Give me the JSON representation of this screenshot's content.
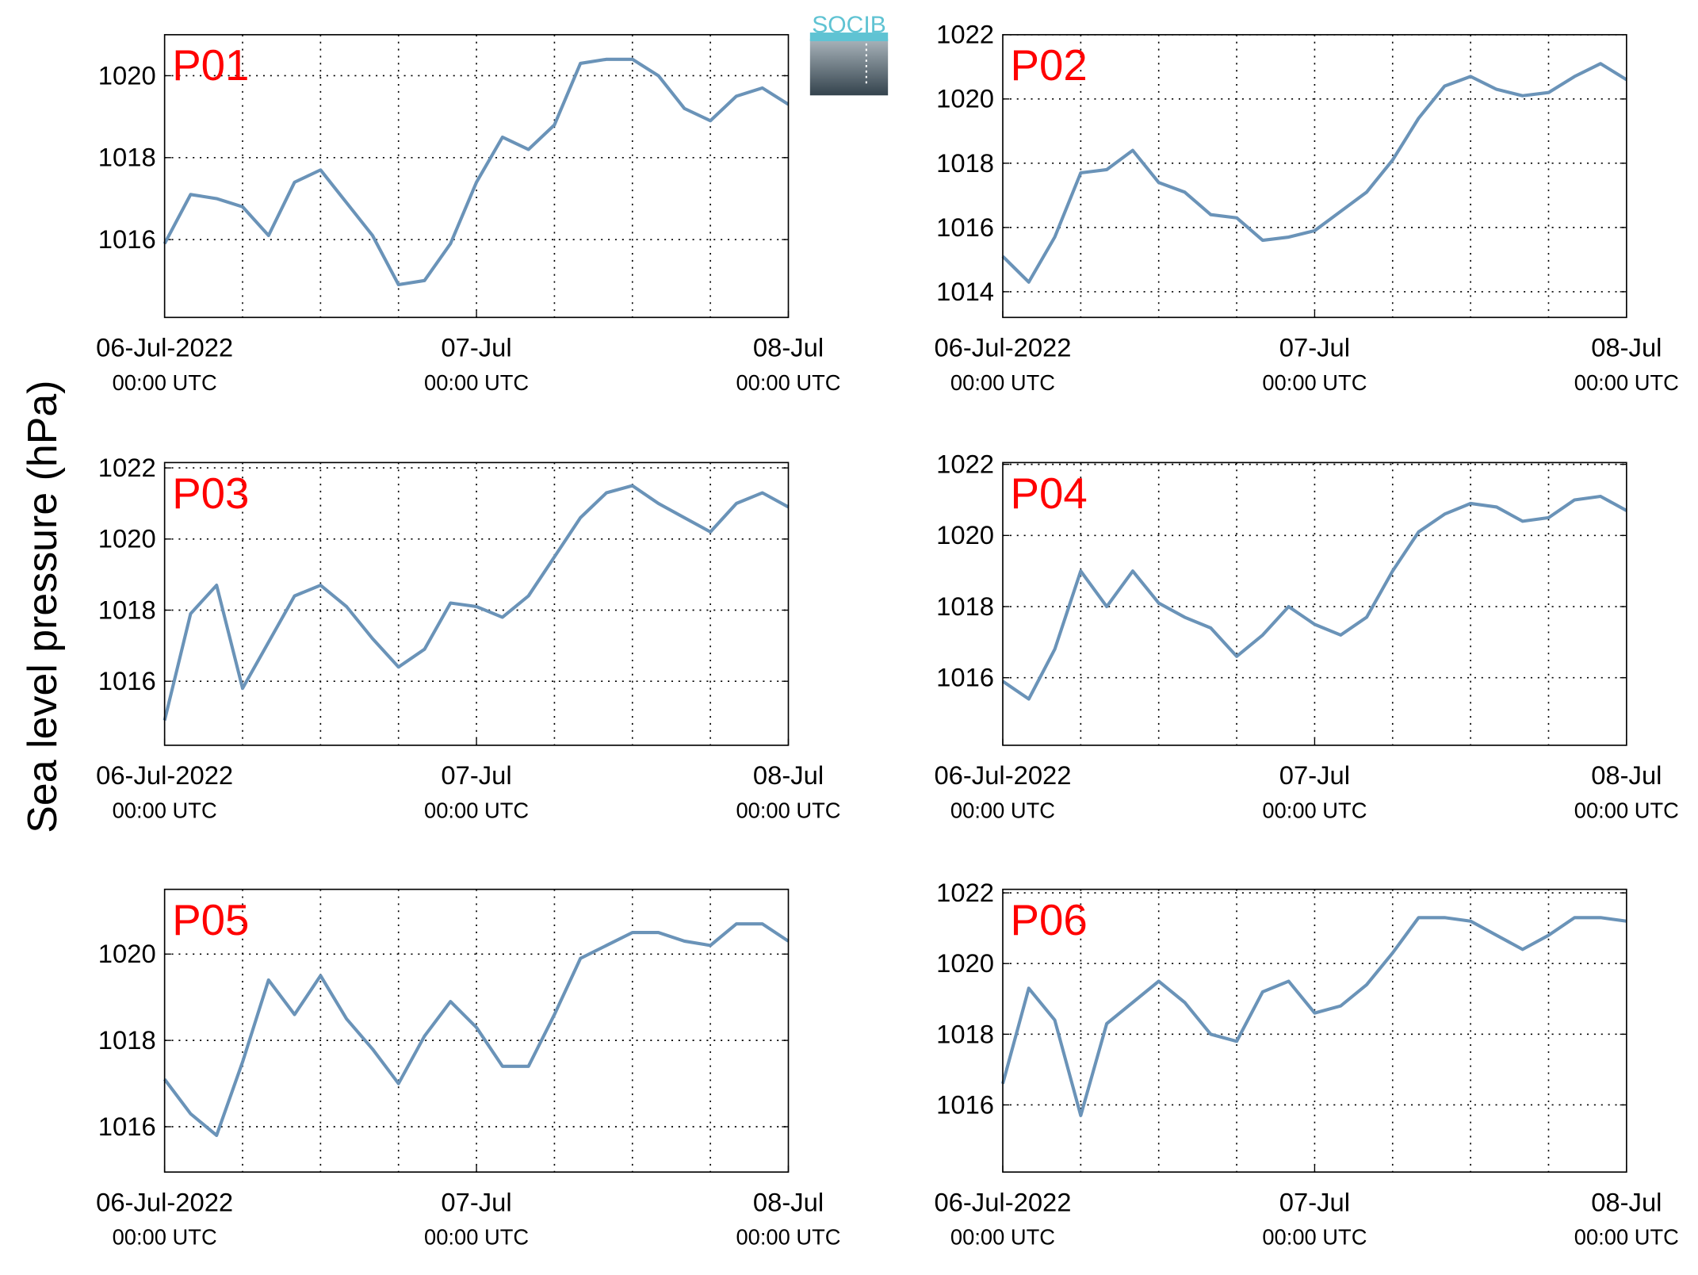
{
  "ylabel": "Sea level pressure (hPa)",
  "logo": "SOCIB",
  "chart_data": [
    {
      "type": "line",
      "title": "P01",
      "color": "#6a93b8",
      "grid": true,
      "x": [
        "2022-07-06T00:00",
        "2022-07-06T02:00",
        "2022-07-06T04:00",
        "2022-07-06T06:00",
        "2022-07-06T08:00",
        "2022-07-06T10:00",
        "2022-07-06T12:00",
        "2022-07-06T14:00",
        "2022-07-06T16:00",
        "2022-07-06T18:00",
        "2022-07-06T20:00",
        "2022-07-06T22:00",
        "2022-07-07T00:00",
        "2022-07-07T02:00",
        "2022-07-07T04:00",
        "2022-07-07T06:00",
        "2022-07-07T08:00",
        "2022-07-07T10:00",
        "2022-07-07T12:00",
        "2022-07-07T14:00",
        "2022-07-07T16:00",
        "2022-07-07T18:00",
        "2022-07-07T20:00",
        "2022-07-07T22:00",
        "2022-07-08T00:00"
      ],
      "values": [
        1015.9,
        1017.1,
        1017.0,
        1016.8,
        1016.1,
        1017.4,
        1017.7,
        1016.9,
        1016.1,
        1014.9,
        1015.0,
        1015.9,
        1017.4,
        1018.5,
        1018.2,
        1018.8,
        1020.3,
        1020.4,
        1020.4,
        1020.0,
        1019.2,
        1018.9,
        1019.5,
        1019.7,
        1019.3
      ],
      "xlim": [
        "2022-07-06T00:00",
        "2022-07-08T00:00"
      ],
      "xticks": [
        {
          "value": "2022-07-06T00:00",
          "label": [
            "06-Jul-2022",
            "00:00 UTC"
          ]
        },
        {
          "value": "2022-07-07T00:00",
          "label": [
            "07-Jul",
            "00:00 UTC"
          ]
        },
        {
          "value": "2022-07-08T00:00",
          "label": [
            "08-Jul",
            "00:00 UTC"
          ]
        }
      ],
      "xgrid": [
        "2022-07-06T06:00",
        "2022-07-06T12:00",
        "2022-07-06T18:00",
        "2022-07-07T00:00",
        "2022-07-07T06:00",
        "2022-07-07T12:00",
        "2022-07-07T18:00"
      ],
      "ylim": [
        1014.1,
        1021.0
      ],
      "yticks": [
        1016,
        1018,
        1020
      ]
    },
    {
      "type": "line",
      "title": "P02",
      "color": "#6a93b8",
      "grid": true,
      "x": [
        "2022-07-06T00:00",
        "2022-07-06T02:00",
        "2022-07-06T04:00",
        "2022-07-06T06:00",
        "2022-07-06T08:00",
        "2022-07-06T10:00",
        "2022-07-06T12:00",
        "2022-07-06T14:00",
        "2022-07-06T16:00",
        "2022-07-06T18:00",
        "2022-07-06T20:00",
        "2022-07-06T22:00",
        "2022-07-07T00:00",
        "2022-07-07T02:00",
        "2022-07-07T04:00",
        "2022-07-07T06:00",
        "2022-07-07T08:00",
        "2022-07-07T10:00",
        "2022-07-07T12:00",
        "2022-07-07T14:00",
        "2022-07-07T16:00",
        "2022-07-07T18:00",
        "2022-07-07T20:00",
        "2022-07-07T22:00",
        "2022-07-08T00:00"
      ],
      "values": [
        1015.1,
        1014.3,
        1015.7,
        1017.7,
        1017.8,
        1018.4,
        1017.4,
        1017.1,
        1016.4,
        1016.3,
        1015.6,
        1015.7,
        1015.9,
        1016.5,
        1017.1,
        1018.1,
        1019.4,
        1020.4,
        1020.7,
        1020.3,
        1020.1,
        1020.2,
        1020.7,
        1021.1,
        1020.6
      ],
      "xlim": [
        "2022-07-06T00:00",
        "2022-07-08T00:00"
      ],
      "xticks": [
        {
          "value": "2022-07-06T00:00",
          "label": [
            "06-Jul-2022",
            "00:00 UTC"
          ]
        },
        {
          "value": "2022-07-07T00:00",
          "label": [
            "07-Jul",
            "00:00 UTC"
          ]
        },
        {
          "value": "2022-07-08T00:00",
          "label": [
            "08-Jul",
            "00:00 UTC"
          ]
        }
      ],
      "xgrid": [
        "2022-07-06T06:00",
        "2022-07-06T12:00",
        "2022-07-06T18:00",
        "2022-07-07T00:00",
        "2022-07-07T06:00",
        "2022-07-07T12:00",
        "2022-07-07T18:00"
      ],
      "ylim": [
        1013.2,
        1022.0
      ],
      "yticks": [
        1014,
        1016,
        1018,
        1020,
        1022
      ]
    },
    {
      "type": "line",
      "title": "P03",
      "color": "#6a93b8",
      "grid": true,
      "x": [
        "2022-07-06T00:00",
        "2022-07-06T02:00",
        "2022-07-06T04:00",
        "2022-07-06T06:00",
        "2022-07-06T08:00",
        "2022-07-06T10:00",
        "2022-07-06T12:00",
        "2022-07-06T14:00",
        "2022-07-06T16:00",
        "2022-07-06T18:00",
        "2022-07-06T20:00",
        "2022-07-06T22:00",
        "2022-07-07T00:00",
        "2022-07-07T02:00",
        "2022-07-07T04:00",
        "2022-07-07T06:00",
        "2022-07-07T08:00",
        "2022-07-07T10:00",
        "2022-07-07T12:00",
        "2022-07-07T14:00",
        "2022-07-07T16:00",
        "2022-07-07T18:00",
        "2022-07-07T20:00",
        "2022-07-07T22:00",
        "2022-07-08T00:00"
      ],
      "values": [
        1014.9,
        1017.9,
        1018.7,
        1015.8,
        1017.1,
        1018.4,
        1018.7,
        1018.1,
        1017.2,
        1016.4,
        1016.9,
        1018.2,
        1018.1,
        1017.8,
        1018.4,
        1019.5,
        1020.6,
        1021.3,
        1021.5,
        1021.0,
        1020.6,
        1020.2,
        1021.0,
        1021.3,
        1020.9
      ],
      "xlim": [
        "2022-07-06T00:00",
        "2022-07-08T00:00"
      ],
      "xticks": [
        {
          "value": "2022-07-06T00:00",
          "label": [
            "06-Jul-2022",
            "00:00 UTC"
          ]
        },
        {
          "value": "2022-07-07T00:00",
          "label": [
            "07-Jul",
            "00:00 UTC"
          ]
        },
        {
          "value": "2022-07-08T00:00",
          "label": [
            "08-Jul",
            "00:00 UTC"
          ]
        }
      ],
      "xgrid": [
        "2022-07-06T06:00",
        "2022-07-06T12:00",
        "2022-07-06T18:00",
        "2022-07-07T00:00",
        "2022-07-07T06:00",
        "2022-07-07T12:00",
        "2022-07-07T18:00"
      ],
      "ylim": [
        1014.2,
        1022.15
      ],
      "yticks": [
        1016,
        1018,
        1020,
        1022
      ]
    },
    {
      "type": "line",
      "title": "P04",
      "color": "#6a93b8",
      "grid": true,
      "x": [
        "2022-07-06T00:00",
        "2022-07-06T02:00",
        "2022-07-06T04:00",
        "2022-07-06T06:00",
        "2022-07-06T08:00",
        "2022-07-06T10:00",
        "2022-07-06T12:00",
        "2022-07-06T14:00",
        "2022-07-06T16:00",
        "2022-07-06T18:00",
        "2022-07-06T20:00",
        "2022-07-06T22:00",
        "2022-07-07T00:00",
        "2022-07-07T02:00",
        "2022-07-07T04:00",
        "2022-07-07T06:00",
        "2022-07-07T08:00",
        "2022-07-07T10:00",
        "2022-07-07T12:00",
        "2022-07-07T14:00",
        "2022-07-07T16:00",
        "2022-07-07T18:00",
        "2022-07-07T20:00",
        "2022-07-07T22:00",
        "2022-07-08T00:00"
      ],
      "values": [
        1015.9,
        1015.4,
        1016.8,
        1019.0,
        1018.0,
        1019.0,
        1018.1,
        1017.7,
        1017.4,
        1016.6,
        1017.2,
        1018.0,
        1017.5,
        1017.2,
        1017.7,
        1019.0,
        1020.1,
        1020.6,
        1020.9,
        1020.8,
        1020.4,
        1020.5,
        1021.0,
        1021.1,
        1020.7
      ],
      "xlim": [
        "2022-07-06T00:00",
        "2022-07-08T00:00"
      ],
      "xticks": [
        {
          "value": "2022-07-06T00:00",
          "label": [
            "06-Jul-2022",
            "00:00 UTC"
          ]
        },
        {
          "value": "2022-07-07T00:00",
          "label": [
            "07-Jul",
            "00:00 UTC"
          ]
        },
        {
          "value": "2022-07-08T00:00",
          "label": [
            "08-Jul",
            "00:00 UTC"
          ]
        }
      ],
      "xgrid": [
        "2022-07-06T06:00",
        "2022-07-06T12:00",
        "2022-07-06T18:00",
        "2022-07-07T00:00",
        "2022-07-07T06:00",
        "2022-07-07T12:00",
        "2022-07-07T18:00"
      ],
      "ylim": [
        1014.1,
        1022.05
      ],
      "yticks": [
        1016,
        1018,
        1020,
        1022
      ]
    },
    {
      "type": "line",
      "title": "P05",
      "color": "#6a93b8",
      "grid": true,
      "x": [
        "2022-07-06T00:00",
        "2022-07-06T02:00",
        "2022-07-06T04:00",
        "2022-07-06T06:00",
        "2022-07-06T08:00",
        "2022-07-06T10:00",
        "2022-07-06T12:00",
        "2022-07-06T14:00",
        "2022-07-06T16:00",
        "2022-07-06T18:00",
        "2022-07-06T20:00",
        "2022-07-06T22:00",
        "2022-07-07T00:00",
        "2022-07-07T02:00",
        "2022-07-07T04:00",
        "2022-07-07T06:00",
        "2022-07-07T08:00",
        "2022-07-07T10:00",
        "2022-07-07T12:00",
        "2022-07-07T14:00",
        "2022-07-07T16:00",
        "2022-07-07T18:00",
        "2022-07-07T20:00",
        "2022-07-07T22:00",
        "2022-07-08T00:00"
      ],
      "values": [
        1017.1,
        1016.3,
        1015.8,
        1017.5,
        1019.4,
        1018.6,
        1019.5,
        1018.5,
        1017.8,
        1017.0,
        1018.1,
        1018.9,
        1018.3,
        1017.4,
        1017.4,
        1018.6,
        1019.9,
        1020.2,
        1020.5,
        1020.5,
        1020.3,
        1020.2,
        1020.7,
        1020.7,
        1020.3
      ],
      "xlim": [
        "2022-07-06T00:00",
        "2022-07-08T00:00"
      ],
      "xticks": [
        {
          "value": "2022-07-06T00:00",
          "label": [
            "06-Jul-2022",
            "00:00 UTC"
          ]
        },
        {
          "value": "2022-07-07T00:00",
          "label": [
            "07-Jul",
            "00:00 UTC"
          ]
        },
        {
          "value": "2022-07-08T00:00",
          "label": [
            "08-Jul",
            "00:00 UTC"
          ]
        }
      ],
      "xgrid": [
        "2022-07-06T06:00",
        "2022-07-06T12:00",
        "2022-07-06T18:00",
        "2022-07-07T00:00",
        "2022-07-07T06:00",
        "2022-07-07T12:00",
        "2022-07-07T18:00"
      ],
      "ylim": [
        1014.95,
        1021.5
      ],
      "yticks": [
        1016,
        1018,
        1020
      ]
    },
    {
      "type": "line",
      "title": "P06",
      "color": "#6a93b8",
      "grid": true,
      "x": [
        "2022-07-06T00:00",
        "2022-07-06T02:00",
        "2022-07-06T04:00",
        "2022-07-06T06:00",
        "2022-07-06T08:00",
        "2022-07-06T10:00",
        "2022-07-06T12:00",
        "2022-07-06T14:00",
        "2022-07-06T16:00",
        "2022-07-06T18:00",
        "2022-07-06T20:00",
        "2022-07-06T22:00",
        "2022-07-07T00:00",
        "2022-07-07T02:00",
        "2022-07-07T04:00",
        "2022-07-07T06:00",
        "2022-07-07T08:00",
        "2022-07-07T10:00",
        "2022-07-07T12:00",
        "2022-07-07T14:00",
        "2022-07-07T16:00",
        "2022-07-07T18:00",
        "2022-07-07T20:00",
        "2022-07-07T22:00",
        "2022-07-08T00:00"
      ],
      "values": [
        1016.6,
        1019.3,
        1018.4,
        1015.7,
        1018.3,
        1018.9,
        1019.5,
        1018.9,
        1018.0,
        1017.8,
        1019.2,
        1019.5,
        1018.6,
        1018.8,
        1019.4,
        1020.3,
        1021.3,
        1021.3,
        1021.2,
        1020.8,
        1020.4,
        1020.8,
        1021.3,
        1021.3,
        1021.2
      ],
      "xlim": [
        "2022-07-06T00:00",
        "2022-07-08T00:00"
      ],
      "xticks": [
        {
          "value": "2022-07-06T00:00",
          "label": [
            "06-Jul-2022",
            "00:00 UTC"
          ]
        },
        {
          "value": "2022-07-07T00:00",
          "label": [
            "07-Jul",
            "00:00 UTC"
          ]
        },
        {
          "value": "2022-07-08T00:00",
          "label": [
            "08-Jul",
            "00:00 UTC"
          ]
        }
      ],
      "xgrid": [
        "2022-07-06T06:00",
        "2022-07-06T12:00",
        "2022-07-06T18:00",
        "2022-07-07T00:00",
        "2022-07-07T06:00",
        "2022-07-07T12:00",
        "2022-07-07T18:00"
      ],
      "ylim": [
        1014.1,
        1022.1
      ],
      "yticks": [
        1016,
        1018,
        1020,
        1022
      ]
    }
  ]
}
